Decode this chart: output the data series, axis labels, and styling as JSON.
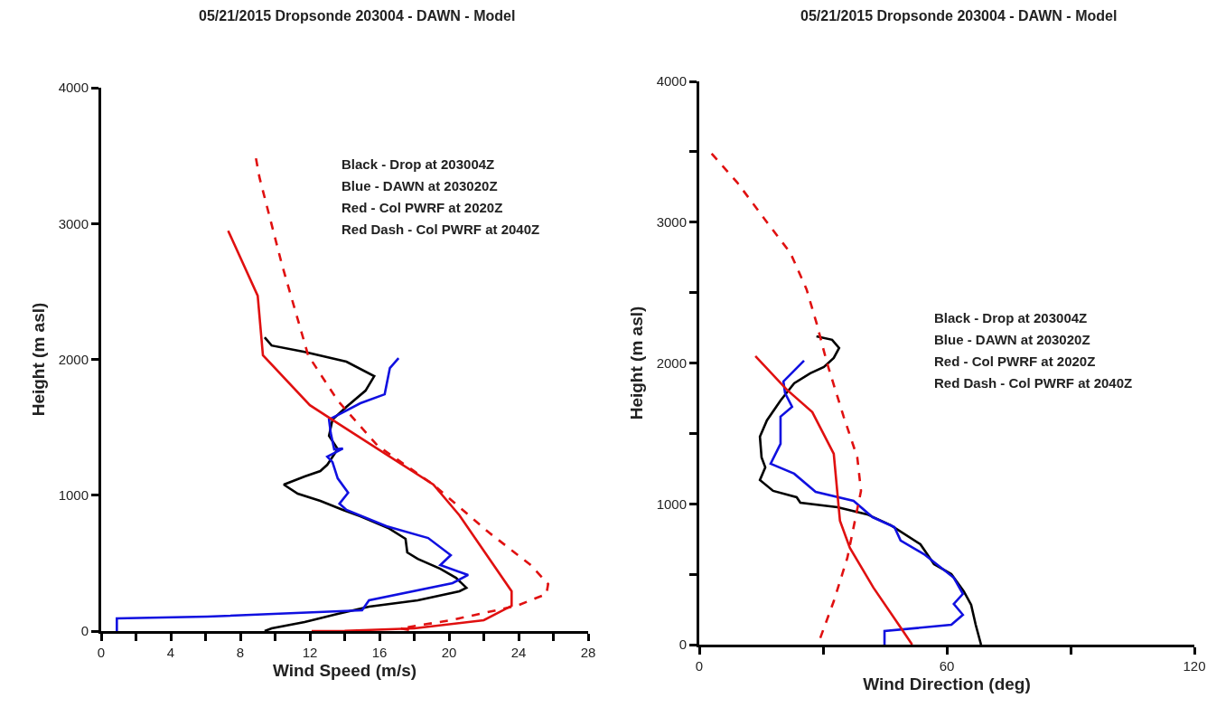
{
  "chart_data": [
    {
      "type": "line",
      "title": "05/21/2015 Dropsonde 203004 - DAWN - Model",
      "xlabel": "Wind Speed (m/s)",
      "ylabel": "Height (m asl)",
      "xlim": [
        0,
        28
      ],
      "xticks": [
        0,
        {
          "value": 2,
          "label": null
        },
        4,
        {
          "value": 6,
          "label": null
        },
        8,
        {
          "value": 10,
          "label": null
        },
        12,
        {
          "value": 14,
          "label": null
        },
        16,
        {
          "value": 18,
          "label": null
        },
        20,
        {
          "value": 22,
          "label": null
        },
        24,
        {
          "value": 26,
          "label": null
        },
        28
      ],
      "ylim": [
        0,
        4000
      ],
      "yticks": [
        0,
        1000,
        2000,
        3000,
        4000
      ],
      "annotations": [
        "Black - Drop at 203004Z",
        "Blue - DAWN at 203020Z",
        "Red - Col PWRF at 2020Z",
        "Red Dash - Col PWRF at 2040Z"
      ],
      "series": [
        {
          "color": "#000000",
          "line_style": "solid",
          "x": [
            9.4,
            9.8,
            11.7,
            14.1,
            15.7,
            15.2,
            14.1,
            13.3,
            13.1,
            13.6,
            13.0,
            12.6,
            11.7,
            10.5,
            11.3,
            12.6,
            13.9,
            14.9,
            16.5,
            17.5,
            17.6,
            18.2,
            19.5,
            20.4,
            21.0,
            20.6,
            18.2,
            15.4,
            13.6,
            11.7,
            9.8,
            9.4
          ],
          "values": [
            2162,
            2102,
            2055,
            1983,
            1876,
            1770,
            1650,
            1557,
            1437,
            1340,
            1224,
            1178,
            1138,
            1078,
            1011,
            958,
            892,
            845,
            759,
            679,
            579,
            532,
            459,
            392,
            319,
            293,
            226,
            180,
            126,
            67,
            20,
            0
          ]
        },
        {
          "color": "#1010e0",
          "line_style": "solid",
          "x": [
            17.1,
            16.6,
            16.3,
            14.9,
            13.6,
            13.1,
            13.2,
            13.4,
            13.9,
            13.0,
            13.3,
            13.6,
            14.2,
            13.7,
            14.1,
            16.4,
            18.8,
            20.1,
            19.5,
            21.1,
            20.2,
            15.4,
            15.0,
            6.1,
            0.9,
            0.9
          ],
          "values": [
            2009,
            1936,
            1743,
            1677,
            1590,
            1557,
            1457,
            1337,
            1344,
            1284,
            1244,
            1124,
            1018,
            938,
            892,
            772,
            685,
            559,
            486,
            413,
            353,
            226,
            153,
            106,
            93,
            0
          ]
        },
        {
          "color": "#e01010",
          "line_style": "solid",
          "x": [
            7.3,
            9.0,
            9.3,
            12.0,
            13.6,
            19.1,
            20.6,
            23.6,
            23.6,
            22.0,
            18.0,
            14.0,
            12.1
          ],
          "values": [
            2947,
            2468,
            2030,
            1663,
            1530,
            1078,
            852,
            293,
            186,
            80,
            20,
            2,
            0
          ]
        },
        {
          "color": "#e01010",
          "line_style": "dashed",
          "x": [
            8.9,
            9.1,
            10.4,
            11.9,
            13.6,
            15.9,
            19.1,
            22.3,
            24.7,
            25.7,
            25.6,
            23.9,
            20.1,
            17.2,
            18.1
          ],
          "values": [
            3480,
            3340,
            2695,
            2030,
            1697,
            1364,
            1078,
            725,
            486,
            346,
            273,
            186,
            80,
            20,
            0
          ]
        }
      ]
    },
    {
      "type": "line",
      "title": "05/21/2015 Dropsonde 203004 - DAWN - Model",
      "xlabel": "Wind Direction (deg)",
      "ylabel": "Height (m asl)",
      "xlim": [
        0,
        120
      ],
      "xticks": [
        0,
        {
          "value": 30,
          "label": null
        },
        60,
        {
          "value": 90,
          "label": null
        },
        120
      ],
      "ylim": [
        0,
        4000
      ],
      "yticks": [
        0,
        {
          "value": 500,
          "label": null
        },
        1000,
        {
          "value": 1500,
          "label": null
        },
        2000,
        {
          "value": 2500,
          "label": null
        },
        3000,
        {
          "value": 3500,
          "label": null
        },
        4000
      ],
      "annotations": [
        "Black - Drop at 203004Z",
        "Blue - DAWN at 203020Z",
        "Red - Col PWRF at 2020Z",
        "Red Dash - Col PWRF at 2040Z"
      ],
      "series": [
        {
          "color": "#000000",
          "line_style": "solid",
          "x": [
            28.4,
            32.2,
            33.9,
            32.6,
            30.2,
            26.9,
            23.0,
            19.7,
            16.4,
            14.7,
            15.1,
            16.0,
            14.7,
            17.9,
            23.6,
            24.5,
            33.5,
            40.7,
            46.4,
            53.6,
            56.9,
            61.1,
            64.1,
            65.9,
            67.0,
            68.3
          ],
          "values": [
            2190,
            2165,
            2107,
            2036,
            1972,
            1927,
            1856,
            1734,
            1593,
            1477,
            1330,
            1259,
            1169,
            1092,
            1047,
            1008,
            976,
            925,
            848,
            713,
            572,
            501,
            379,
            283,
            141,
            0
          ]
        },
        {
          "color": "#1010e0",
          "line_style": "solid",
          "x": [
            25.4,
            20.4,
            20.8,
            22.5,
            19.7,
            19.7,
            17.3,
            23.0,
            28.2,
            37.4,
            42.0,
            47.3,
            48.8,
            54.5,
            61.7,
            63.9,
            61.7,
            63.9,
            61.1,
            44.9,
            44.9
          ],
          "values": [
            2017,
            1869,
            1786,
            1689,
            1619,
            1426,
            1285,
            1214,
            1085,
            1021,
            905,
            835,
            739,
            642,
            475,
            360,
            289,
            212,
            141,
            96,
            0
          ]
        },
        {
          "color": "#e01010",
          "line_style": "solid",
          "x": [
            13.6,
            21.2,
            27.4,
            32.6,
            34.1,
            36.5,
            42.2,
            48.8,
            51.6
          ],
          "values": [
            2049,
            1811,
            1651,
            1355,
            880,
            687,
            405,
            122,
            0
          ]
        },
        {
          "color": "#e01010",
          "line_style": "dashed",
          "x": [
            3.0,
            9.2,
            16.4,
            22.1,
            26.0,
            28.4,
            31.0,
            35.0,
            38.3,
            39.2,
            37.9,
            35.9,
            32.6,
            29.3,
            28.4
          ],
          "values": [
            3487,
            3282,
            3000,
            2781,
            2524,
            2286,
            1997,
            1619,
            1330,
            1092,
            905,
            617,
            308,
            45,
            0
          ]
        }
      ]
    }
  ]
}
